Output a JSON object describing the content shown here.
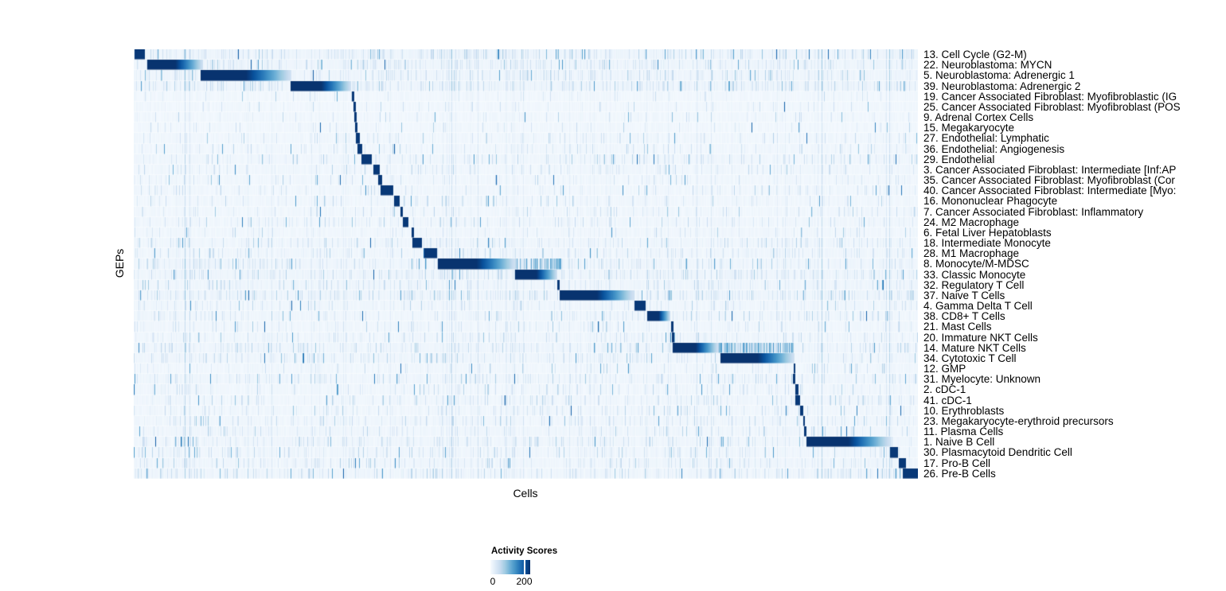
{
  "legend": {
    "title": "Activity Scores",
    "min_label": "0",
    "max_label": "200",
    "tick_frac": 0.85
  },
  "chart_data": {
    "type": "heatmap",
    "title": "",
    "xlabel": "Cells",
    "ylabel": "GEPs",
    "grid": false,
    "legend_position": "bottom",
    "value_scale": {
      "min": 0,
      "labeled_tick": 200
    },
    "colormap": {
      "name": "Blues",
      "stops": [
        "#F7FBFF",
        "#DEEBF7",
        "#C6DBEF",
        "#9ECAE1",
        "#6BAED6",
        "#4292C6",
        "#2171B5",
        "#08519C",
        "#08306B"
      ]
    },
    "n_rows": 41,
    "rows": [
      {
        "label": "13. Cell Cycle (G2-M)",
        "block": [
          0.001,
          0.014
        ],
        "fade": false,
        "noise": 0.9
      },
      {
        "label": "22. Neuroblastoma: MYCN",
        "block": [
          0.017,
          0.088
        ],
        "fade": true,
        "noise": 0.75
      },
      {
        "label": "5. Neuroblastoma: Adrenergic 1",
        "block": [
          0.085,
          0.2
        ],
        "fade": true,
        "noise": 0.75
      },
      {
        "label": "39. Neuroblastoma: Adrenergic 2",
        "block": [
          0.2,
          0.277
        ],
        "fade": true,
        "noise": 0.9
      },
      {
        "label": "19. Cancer Associated Fibroblast: Myofibroblastic (IG",
        "block": [
          0.278,
          0.281
        ],
        "fade": false,
        "noise": 0.15
      },
      {
        "label": "25. Cancer Associated Fibroblast: Myofibroblast (POS",
        "block": [
          0.28,
          0.283
        ],
        "fade": false,
        "noise": 0.15
      },
      {
        "label": "9. Adrenal Cortex Cells",
        "block": [
          0.281,
          0.284
        ],
        "fade": false,
        "noise": 0.2
      },
      {
        "label": "15. Megakaryocyte",
        "block": [
          0.282,
          0.285
        ],
        "fade": false,
        "noise": 0.15
      },
      {
        "label": "27. Endothelial: Lymphatic",
        "block": [
          0.283,
          0.288
        ],
        "fade": false,
        "noise": 0.3
      },
      {
        "label": "36. Endothelial: Angiogenesis",
        "block": [
          0.285,
          0.291
        ],
        "fade": false,
        "noise": 0.3
      },
      {
        "label": "29. Endothelial",
        "block": [
          0.29,
          0.303
        ],
        "fade": false,
        "noise": 0.5
      },
      {
        "label": "3. Cancer Associated Fibroblast: Intermediate [Inf:AP",
        "block": [
          0.305,
          0.313
        ],
        "fade": false,
        "noise": 0.4
      },
      {
        "label": "35. Cancer Associated Fibroblast: Myofibroblast (Cor",
        "block": [
          0.311,
          0.316
        ],
        "fade": false,
        "noise": 0.3
      },
      {
        "label": "40. Cancer Associated Fibroblast: Intermediate [Myo:",
        "block": [
          0.314,
          0.33
        ],
        "fade": false,
        "noise": 0.35
      },
      {
        "label": "16. Mononuclear Phagocyte",
        "block": [
          0.331,
          0.339
        ],
        "fade": false,
        "noise": 0.3
      },
      {
        "label": "7. Cancer Associated Fibroblast: Inflammatory",
        "block": [
          0.34,
          0.343
        ],
        "fade": false,
        "noise": 0.3
      },
      {
        "label": "24. M2 Macrophage",
        "block": [
          0.343,
          0.35
        ],
        "fade": false,
        "noise": 0.4
      },
      {
        "label": "6. Fetal Liver Hepatoblasts",
        "block": [
          0.354,
          0.357
        ],
        "fade": false,
        "noise": 0.3
      },
      {
        "label": "18. Intermediate Monocyte",
        "block": [
          0.355,
          0.367
        ],
        "fade": false,
        "noise": 0.55
      },
      {
        "label": "28. M1 Macrophage",
        "block": [
          0.37,
          0.386
        ],
        "fade": false,
        "noise": 0.5
      },
      {
        "label": "8. Monocyte/M-MDSC",
        "block": [
          0.387,
          0.486
        ],
        "fade": true,
        "tail": [
          0.486,
          0.545
        ],
        "noise": 0.65
      },
      {
        "label": "33. Classic Monocyte",
        "block": [
          0.486,
          0.54
        ],
        "fade": true,
        "noise": 0.8
      },
      {
        "label": "32. Regulatory T Cell",
        "block": [
          0.54,
          0.543
        ],
        "fade": false,
        "noise": 0.6
      },
      {
        "label": "37. Naive T Cells",
        "block": [
          0.543,
          0.637
        ],
        "fade": true,
        "noise": 0.85
      },
      {
        "label": "4. Gamma Delta T Cell",
        "block": [
          0.638,
          0.652
        ],
        "fade": false,
        "noise": 0.45
      },
      {
        "label": "38. CD8+ T Cells",
        "block": [
          0.654,
          0.684
        ],
        "fade": true,
        "noise": 0.5
      },
      {
        "label": "21. Mast Cells",
        "block": [
          0.685,
          0.688
        ],
        "fade": false,
        "noise": 0.35
      },
      {
        "label": "20. Immature NKT Cells",
        "block": [
          0.686,
          0.689
        ],
        "fade": false,
        "noise": 0.45
      },
      {
        "label": "14. Mature NKT Cells",
        "block": [
          0.687,
          0.745
        ],
        "fade": true,
        "tail": [
          0.745,
          0.842
        ],
        "noise": 0.7
      },
      {
        "label": "34. Cytotoxic T Cell",
        "block": [
          0.748,
          0.842
        ],
        "fade": true,
        "noise": 0.65
      },
      {
        "label": "12. GMP",
        "block": [
          0.841,
          0.843
        ],
        "fade": false,
        "noise": 0.3
      },
      {
        "label": "31. Myelocyte: Unknown",
        "block": [
          0.84,
          0.843
        ],
        "fade": false,
        "noise": 0.55
      },
      {
        "label": "2. cDC-1",
        "block": [
          0.843,
          0.847
        ],
        "fade": false,
        "noise": 0.35
      },
      {
        "label": "41. cDC-1",
        "block": [
          0.843,
          0.849
        ],
        "fade": false,
        "noise": 0.45
      },
      {
        "label": "10. Erythroblasts",
        "block": [
          0.849,
          0.853
        ],
        "fade": false,
        "noise": 0.4
      },
      {
        "label": "23. Megakaryocyte-erythroid precursors",
        "block": [
          0.853,
          0.855
        ],
        "fade": false,
        "noise": 0.5
      },
      {
        "label": "11. Plasma Cells",
        "block": [
          0.854,
          0.857
        ],
        "fade": false,
        "noise": 0.5
      },
      {
        "label": "1. Naive B Cell",
        "block": [
          0.857,
          0.964
        ],
        "fade": true,
        "noise": 0.6
      },
      {
        "label": "30. Plasmacytoid Dendritic Cell",
        "block": [
          0.964,
          0.974
        ],
        "fade": false,
        "noise": 0.5
      },
      {
        "label": "17. Pro-B Cell",
        "block": [
          0.975,
          0.984
        ],
        "fade": false,
        "noise": 0.55
      },
      {
        "label": "26. Pre-B Cells",
        "block": [
          0.98,
          1.0
        ],
        "fade": false,
        "noise": 0.65
      }
    ]
  }
}
